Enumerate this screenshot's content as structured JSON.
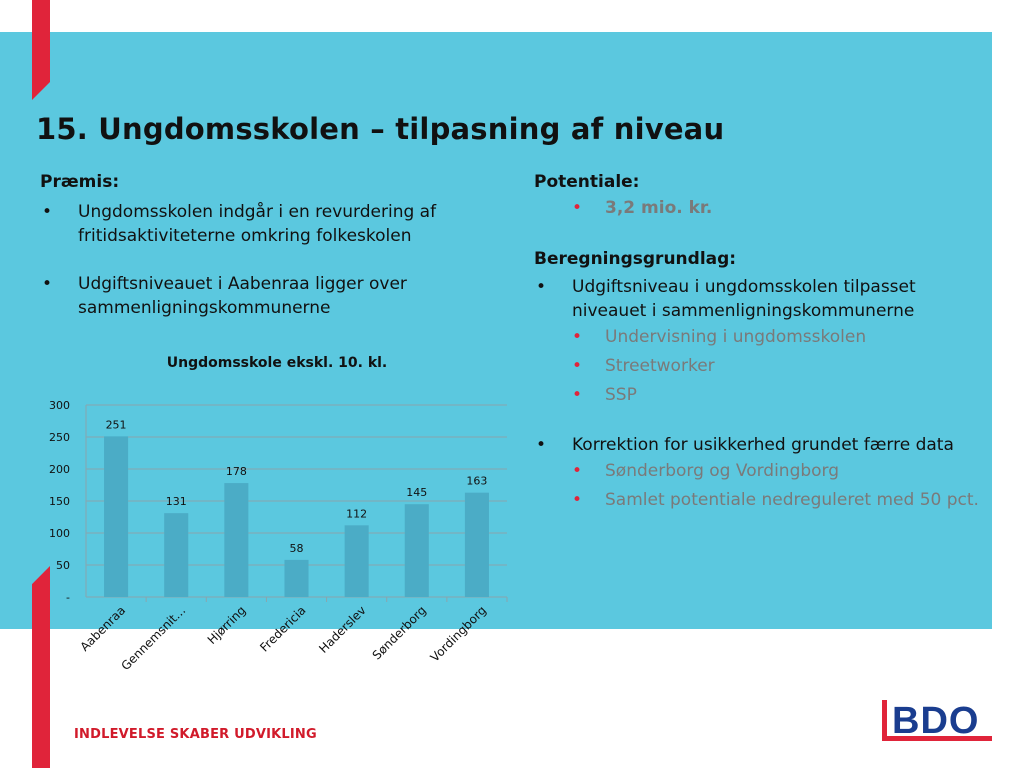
{
  "title": "15. Ungdomsskolen – tilpasning af niveau",
  "left": {
    "heading": "Præmis:",
    "bullets": [
      "Ungdomsskolen indgår i en revurdering af fritidsaktiviteterne omkring folkeskolen",
      "Udgiftsniveauet i Aabenraa ligger over sammenligningskommunerne"
    ]
  },
  "right": {
    "potential_heading": "Potentiale:",
    "potential_value": "3,2 mio. kr.",
    "basis_heading": "Beregningsgrundlag:",
    "bullet1": "Udgiftsniveau i ungdomsskolen tilpasset niveauet i sammenligningskommunerne",
    "bullet1_sub": [
      "Undervisning i ungdomsskolen",
      "Streetworker",
      "SSP"
    ],
    "bullet2": "Korrektion for usikkerhed grundet færre data",
    "bullet2_sub": [
      "Sønderborg og Vordingborg",
      "Samlet potentiale nedreguleret med 50 pct."
    ]
  },
  "footer": "INDLEVELSE SKABER UDVIKLING",
  "logo_text": "BDO",
  "colors": {
    "band": "#5bc8df",
    "bar": "#4bacc6",
    "accent_red": "#e0243a",
    "logo_blue": "#1a3d8f"
  },
  "chart_data": {
    "type": "bar",
    "title": "Ungdomsskole ekskl. 10. kl.",
    "categories": [
      "Aabenraa",
      "Gennemsnit…",
      "Hjørring",
      "Fredericia",
      "Haderslev",
      "Sønderborg",
      "Vordingborg"
    ],
    "values": [
      251,
      131,
      178,
      58,
      112,
      145,
      163
    ],
    "ylim": [
      0,
      300
    ],
    "yticks": [
      "-",
      "50",
      "100",
      "150",
      "200",
      "250",
      "300"
    ],
    "grid": true
  }
}
